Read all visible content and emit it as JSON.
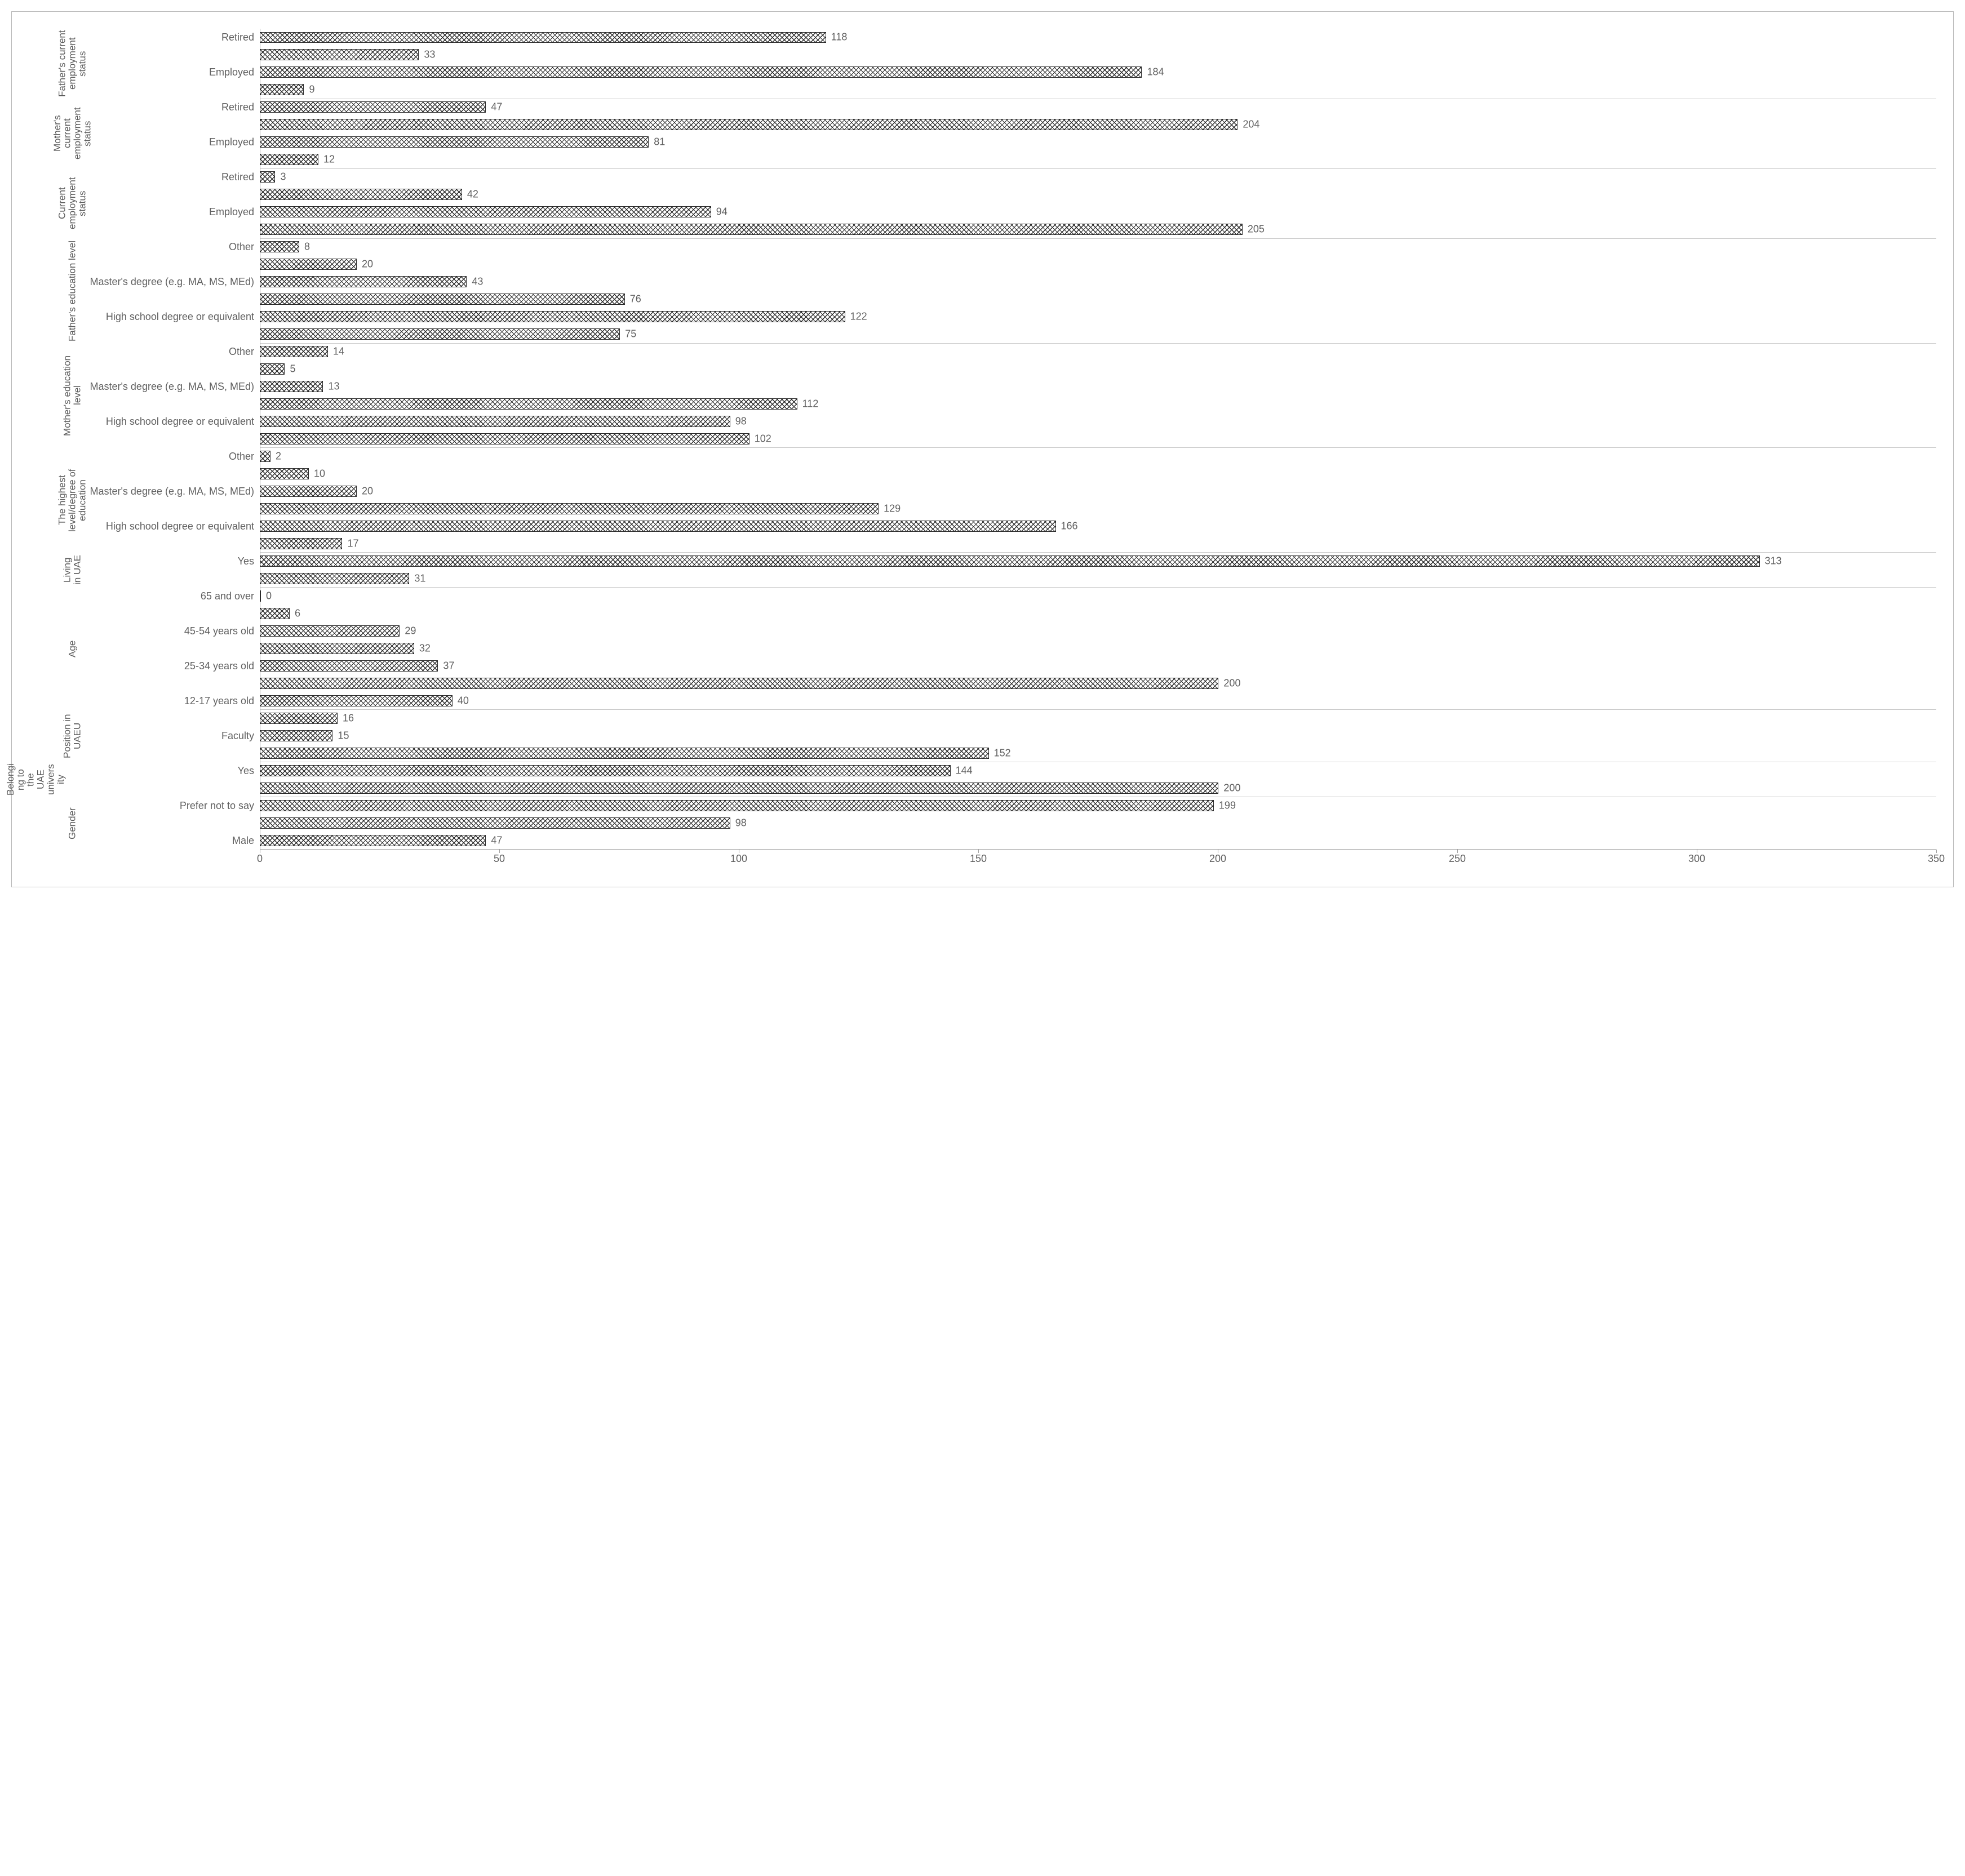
{
  "chart": {
    "type": "bar-horizontal-grouped",
    "xmin": 0,
    "xmax": 350,
    "xtick_step": 50,
    "background_color": "#ffffff",
    "grid_color": "#c8c8c8",
    "axis_color": "#9e9e9e",
    "label_color": "#606060",
    "label_fontsize": 18,
    "cat_label_fontsize": 17,
    "bar_pattern": "crosshatch",
    "bar_outline_color": "#2a2a2a",
    "groups": [
      {
        "outer_label": "",
        "inner_label": "Father's current employment status",
        "bars": [
          {
            "label": "Retired",
            "value": 118
          },
          {
            "label": "",
            "value": 33
          },
          {
            "label": "Employed",
            "value": 184
          },
          {
            "label": "",
            "value": 9
          }
        ]
      },
      {
        "outer_label": "",
        "inner_label": "Mother's current employment status",
        "bars": [
          {
            "label": "Retired",
            "value": 47
          },
          {
            "label": "",
            "value": 204
          },
          {
            "label": "Employed",
            "value": 81
          },
          {
            "label": "",
            "value": 12
          }
        ]
      },
      {
        "outer_label": "",
        "inner_label": "Current employment status",
        "bars": [
          {
            "label": "Retired",
            "value": 3
          },
          {
            "label": "",
            "value": 42
          },
          {
            "label": "Employed",
            "value": 94
          },
          {
            "label": "",
            "value": 205
          }
        ]
      },
      {
        "outer_label": "",
        "inner_label": "Father's education level",
        "bars": [
          {
            "label": "Other",
            "value": 8
          },
          {
            "label": "",
            "value": 20
          },
          {
            "label": "Master's degree (e.g. MA, MS, MEd)",
            "value": 43
          },
          {
            "label": "",
            "value": 76
          },
          {
            "label": "High school degree or equivalent",
            "value": 122
          },
          {
            "label": "",
            "value": 75
          }
        ]
      },
      {
        "outer_label": "",
        "inner_label": "Mother's education level",
        "bars": [
          {
            "label": "Other",
            "value": 14
          },
          {
            "label": "",
            "value": 5
          },
          {
            "label": "Master's degree (e.g. MA, MS, MEd)",
            "value": 13
          },
          {
            "label": "",
            "value": 112
          },
          {
            "label": "High school degree or equivalent",
            "value": 98
          },
          {
            "label": "",
            "value": 102
          }
        ]
      },
      {
        "outer_label": "",
        "inner_label": "The highest level/degree of education",
        "bars": [
          {
            "label": "Other",
            "value": 2
          },
          {
            "label": "",
            "value": 10
          },
          {
            "label": "Master's degree (e.g. MA, MS, MEd)",
            "value": 20
          },
          {
            "label": "",
            "value": 129
          },
          {
            "label": "High school degree or equivalent",
            "value": 166
          },
          {
            "label": "",
            "value": 17
          }
        ]
      },
      {
        "outer_label": "",
        "inner_label": "Living in UAE",
        "bars": [
          {
            "label": "Yes",
            "value": 313
          },
          {
            "label": "",
            "value": 31
          }
        ]
      },
      {
        "outer_label": "",
        "inner_label": "Age",
        "bars": [
          {
            "label": "65 and over",
            "value": 0
          },
          {
            "label": "",
            "value": 6
          },
          {
            "label": "45-54 years old",
            "value": 29
          },
          {
            "label": "",
            "value": 32
          },
          {
            "label": "25-34 years old",
            "value": 37
          },
          {
            "label": "",
            "value": 200
          },
          {
            "label": "12-17 years old",
            "value": 40
          }
        ]
      },
      {
        "outer_label": "",
        "inner_label": "Position in UAEU",
        "bars": [
          {
            "label": "",
            "value": 16
          },
          {
            "label": "Faculty",
            "value": 15
          },
          {
            "label": "",
            "value": 152
          }
        ]
      },
      {
        "outer_label": "Belonging to the UAE university",
        "inner_label": "",
        "bars": [
          {
            "label": "Yes",
            "value": 144
          },
          {
            "label": "",
            "value": 200
          }
        ]
      },
      {
        "outer_label": "",
        "inner_label": "Gender",
        "bars": [
          {
            "label": "Prefer not to say",
            "value": 199
          },
          {
            "label": "",
            "value": 98
          },
          {
            "label": "Male",
            "value": 47
          }
        ]
      }
    ]
  }
}
